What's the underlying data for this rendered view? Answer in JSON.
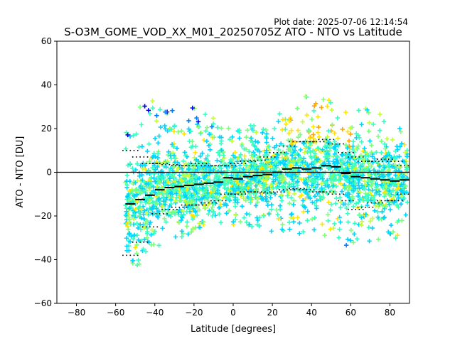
{
  "plot_date": "Plot date: 2025-07-06 12:14:54",
  "chart_data": {
    "type": "scatter",
    "title": "S-O3M_GOME_VOD_XX_M01_20250705Z ATO - NTO vs Latitude",
    "xlabel": "Latitude [degrees]",
    "ylabel": "ATO - NTO [DU]",
    "xlim": [
      -90,
      90
    ],
    "ylim": [
      -60,
      60
    ],
    "xticks": [
      -80,
      -60,
      -40,
      -20,
      0,
      20,
      40,
      60,
      80
    ],
    "yticks": [
      -60,
      -40,
      -20,
      0,
      20,
      40,
      60
    ],
    "grid": false,
    "reference_line_y": 0,
    "scatter_extent": [
      {
        "lat": -55,
        "lo": -40,
        "hi": 20
      },
      {
        "lat": -50,
        "lo": -45,
        "hi": 30
      },
      {
        "lat": -45,
        "lo": -40,
        "hi": 35
      },
      {
        "lat": -40,
        "lo": -35,
        "hi": 32
      },
      {
        "lat": -35,
        "lo": -32,
        "hi": 30
      },
      {
        "lat": -30,
        "lo": -30,
        "hi": 28
      },
      {
        "lat": -25,
        "lo": -30,
        "hi": 30
      },
      {
        "lat": -20,
        "lo": -28,
        "hi": 30
      },
      {
        "lat": -15,
        "lo": -25,
        "hi": 27
      },
      {
        "lat": -10,
        "lo": -25,
        "hi": 25
      },
      {
        "lat": -5,
        "lo": -25,
        "hi": 22
      },
      {
        "lat": 0,
        "lo": -25,
        "hi": 20
      },
      {
        "lat": 5,
        "lo": -25,
        "hi": 20
      },
      {
        "lat": 10,
        "lo": -25,
        "hi": 22
      },
      {
        "lat": 15,
        "lo": -25,
        "hi": 24
      },
      {
        "lat": 20,
        "lo": -28,
        "hi": 26
      },
      {
        "lat": 25,
        "lo": -28,
        "hi": 28
      },
      {
        "lat": 30,
        "lo": -30,
        "hi": 32
      },
      {
        "lat": 35,
        "lo": -30,
        "hi": 36
      },
      {
        "lat": 40,
        "lo": -32,
        "hi": 38
      },
      {
        "lat": 45,
        "lo": -30,
        "hi": 36
      },
      {
        "lat": 50,
        "lo": -30,
        "hi": 33
      },
      {
        "lat": 55,
        "lo": -32,
        "hi": 30
      },
      {
        "lat": 60,
        "lo": -35,
        "hi": 30
      },
      {
        "lat": 65,
        "lo": -35,
        "hi": 32
      },
      {
        "lat": 70,
        "lo": -35,
        "hi": 28
      },
      {
        "lat": 75,
        "lo": -33,
        "hi": 28
      },
      {
        "lat": 80,
        "lo": -32,
        "hi": 30
      },
      {
        "lat": 85,
        "lo": -30,
        "hi": 22
      },
      {
        "lat": 89,
        "lo": -25,
        "hi": 15
      }
    ],
    "mean_line": [
      {
        "lat": -52.5,
        "value": -14.5
      },
      {
        "lat": -47.5,
        "value": -12.5
      },
      {
        "lat": -42.5,
        "value": -10.5
      },
      {
        "lat": -37.5,
        "value": -8
      },
      {
        "lat": -32.5,
        "value": -7
      },
      {
        "lat": -27.5,
        "value": -6.5
      },
      {
        "lat": -22.5,
        "value": -6
      },
      {
        "lat": -17.5,
        "value": -5.5
      },
      {
        "lat": -12.5,
        "value": -5
      },
      {
        "lat": -7.5,
        "value": -4.5
      },
      {
        "lat": -2.5,
        "value": -2.5
      },
      {
        "lat": 2.5,
        "value": -3
      },
      {
        "lat": 7.5,
        "value": -2
      },
      {
        "lat": 12.5,
        "value": -1.5
      },
      {
        "lat": 17.5,
        "value": -1
      },
      {
        "lat": 22.5,
        "value": 0
      },
      {
        "lat": 27.5,
        "value": 1.5
      },
      {
        "lat": 32.5,
        "value": 2
      },
      {
        "lat": 37.5,
        "value": 1.5
      },
      {
        "lat": 42.5,
        "value": 2
      },
      {
        "lat": 47.5,
        "value": 3
      },
      {
        "lat": 52.5,
        "value": 2.5
      },
      {
        "lat": 57.5,
        "value": -0.5
      },
      {
        "lat": 62.5,
        "value": -2
      },
      {
        "lat": 67.5,
        "value": -2.5
      },
      {
        "lat": 72.5,
        "value": -3
      },
      {
        "lat": 77.5,
        "value": -3.5
      },
      {
        "lat": 82.5,
        "value": -4
      },
      {
        "lat": 87.5,
        "value": -3.5
      }
    ],
    "spread_upper": [
      {
        "lat": -52.5,
        "value": 10
      },
      {
        "lat": -47.5,
        "value": 7
      },
      {
        "lat": -42.5,
        "value": 4
      },
      {
        "lat": -37.5,
        "value": 4
      },
      {
        "lat": -32.5,
        "value": 3.5
      },
      {
        "lat": -27.5,
        "value": 3
      },
      {
        "lat": -22.5,
        "value": 3
      },
      {
        "lat": -17.5,
        "value": 4
      },
      {
        "lat": -12.5,
        "value": 3
      },
      {
        "lat": -7.5,
        "value": 3
      },
      {
        "lat": -2.5,
        "value": 3
      },
      {
        "lat": 2.5,
        "value": 4
      },
      {
        "lat": 7.5,
        "value": 5
      },
      {
        "lat": 12.5,
        "value": 5.5
      },
      {
        "lat": 17.5,
        "value": 7
      },
      {
        "lat": 22.5,
        "value": 9
      },
      {
        "lat": 27.5,
        "value": 12
      },
      {
        "lat": 32.5,
        "value": 14
      },
      {
        "lat": 37.5,
        "value": 14
      },
      {
        "lat": 42.5,
        "value": 14
      },
      {
        "lat": 47.5,
        "value": 15
      },
      {
        "lat": 52.5,
        "value": 13
      },
      {
        "lat": 57.5,
        "value": 9
      },
      {
        "lat": 62.5,
        "value": 7
      },
      {
        "lat": 67.5,
        "value": 5
      },
      {
        "lat": 72.5,
        "value": 5
      },
      {
        "lat": 77.5,
        "value": 6
      },
      {
        "lat": 82.5,
        "value": 5
      },
      {
        "lat": 87.5,
        "value": 3
      }
    ],
    "spread_lower": [
      {
        "lat": -52.5,
        "value": -38
      },
      {
        "lat": -47.5,
        "value": -32
      },
      {
        "lat": -42.5,
        "value": -25
      },
      {
        "lat": -37.5,
        "value": -19
      },
      {
        "lat": -32.5,
        "value": -17
      },
      {
        "lat": -27.5,
        "value": -16
      },
      {
        "lat": -22.5,
        "value": -15
      },
      {
        "lat": -17.5,
        "value": -15
      },
      {
        "lat": -12.5,
        "value": -14
      },
      {
        "lat": -7.5,
        "value": -13
      },
      {
        "lat": -2.5,
        "value": -10
      },
      {
        "lat": 2.5,
        "value": -10
      },
      {
        "lat": 7.5,
        "value": -9
      },
      {
        "lat": 12.5,
        "value": -9
      },
      {
        "lat": 17.5,
        "value": -9.5
      },
      {
        "lat": 22.5,
        "value": -9
      },
      {
        "lat": 27.5,
        "value": -8
      },
      {
        "lat": 32.5,
        "value": -7.5
      },
      {
        "lat": 37.5,
        "value": -8
      },
      {
        "lat": 42.5,
        "value": -9
      },
      {
        "lat": 47.5,
        "value": -9
      },
      {
        "lat": 52.5,
        "value": -10
      },
      {
        "lat": 57.5,
        "value": -13
      },
      {
        "lat": 62.5,
        "value": -17
      },
      {
        "lat": 67.5,
        "value": -16
      },
      {
        "lat": 72.5,
        "value": -14
      },
      {
        "lat": 77.5,
        "value": -13
      },
      {
        "lat": 82.5,
        "value": -13
      },
      {
        "lat": 87.5,
        "value": -10
      }
    ],
    "colors": {
      "mean": "#000000",
      "axis": "#000000",
      "palette": [
        "#0000ff",
        "#0080ff",
        "#00d4ff",
        "#36ffc1",
        "#7dff7a",
        "#c1ff36",
        "#ffe600",
        "#ffa500"
      ]
    }
  }
}
